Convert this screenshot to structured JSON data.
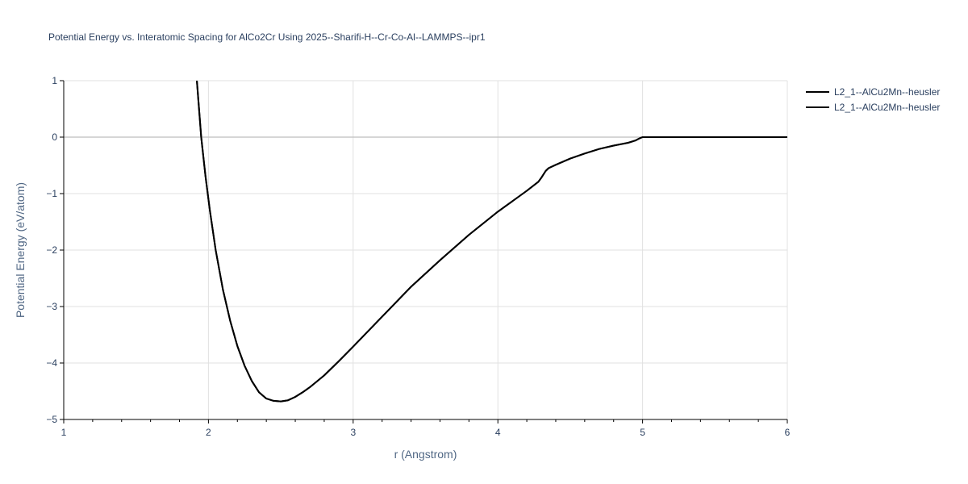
{
  "chart_data": {
    "type": "line",
    "title": "Potential Energy vs. Interatomic Spacing for AlCo2Cr Using 2025--Sharifi-H--Cr-Co-Al--LAMMPS--ipr1",
    "xlabel": "r (Angstrom)",
    "ylabel": "Potential Energy (eV/atom)",
    "xlim": [
      1,
      6
    ],
    "ylim": [
      -5,
      1
    ],
    "x_ticks": [
      1,
      2,
      3,
      4,
      5,
      6
    ],
    "x_tick_labels": [
      "1",
      "2",
      "3",
      "4",
      "5",
      "6"
    ],
    "y_ticks": [
      1,
      0,
      -1,
      -2,
      -3,
      -4,
      -5
    ],
    "y_tick_labels": [
      "1",
      "0",
      "−1",
      "−2",
      "−3",
      "−4",
      "−5"
    ],
    "grid": true,
    "legend_position": "top-right",
    "series": [
      {
        "name": "L2_1--AlCu2Mn--heusler",
        "color": "#000000",
        "x": [
          1.92,
          1.95,
          1.98,
          2.01,
          2.05,
          2.1,
          2.15,
          2.2,
          2.25,
          2.3,
          2.35,
          2.4,
          2.45,
          2.5,
          2.55,
          2.6,
          2.65,
          2.7,
          2.8,
          2.9,
          3.0,
          3.2,
          3.4,
          3.6,
          3.8,
          4.0,
          4.2,
          4.28,
          4.3,
          4.33,
          4.35,
          4.4,
          4.5,
          4.6,
          4.7,
          4.8,
          4.9,
          4.95,
          4.98,
          5.0,
          5.5,
          6.0
        ],
        "y": [
          1.0,
          0.0,
          -0.7,
          -1.3,
          -2.0,
          -2.7,
          -3.25,
          -3.7,
          -4.05,
          -4.32,
          -4.52,
          -4.63,
          -4.67,
          -4.68,
          -4.66,
          -4.6,
          -4.52,
          -4.43,
          -4.22,
          -3.97,
          -3.71,
          -3.18,
          -2.65,
          -2.18,
          -1.73,
          -1.32,
          -0.95,
          -0.79,
          -0.72,
          -0.6,
          -0.55,
          -0.49,
          -0.38,
          -0.29,
          -0.21,
          -0.15,
          -0.1,
          -0.06,
          -0.02,
          0.0,
          0.0,
          0.0
        ]
      },
      {
        "name": "L2_1--AlCu2Mn--heusler",
        "color": "#000000",
        "x": [
          1.92,
          1.95,
          1.98,
          2.01,
          2.05,
          2.1,
          2.15,
          2.2,
          2.25,
          2.3,
          2.35,
          2.4,
          2.45,
          2.5,
          2.55,
          2.6,
          2.65,
          2.7,
          2.8,
          2.9,
          3.0,
          3.2,
          3.4,
          3.6,
          3.8,
          4.0,
          4.2,
          4.28,
          4.3,
          4.33,
          4.35,
          4.4,
          4.5,
          4.6,
          4.7,
          4.8,
          4.9,
          4.95,
          4.98,
          5.0,
          5.5,
          6.0
        ],
        "y": [
          1.0,
          0.0,
          -0.7,
          -1.3,
          -2.0,
          -2.7,
          -3.25,
          -3.7,
          -4.05,
          -4.32,
          -4.52,
          -4.63,
          -4.67,
          -4.68,
          -4.66,
          -4.6,
          -4.52,
          -4.43,
          -4.22,
          -3.97,
          -3.71,
          -3.18,
          -2.65,
          -2.18,
          -1.73,
          -1.32,
          -0.95,
          -0.79,
          -0.72,
          -0.6,
          -0.55,
          -0.49,
          -0.38,
          -0.29,
          -0.21,
          -0.15,
          -0.1,
          -0.06,
          -0.02,
          0.0,
          0.0,
          0.0
        ]
      }
    ]
  }
}
